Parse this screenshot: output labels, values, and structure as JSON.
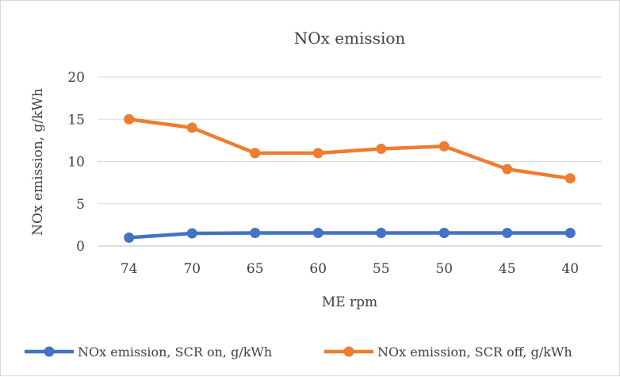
{
  "chart_data": {
    "type": "line",
    "title": "NOx emission",
    "xlabel": "ME rpm",
    "ylabel": "NOx emission, g/kWh",
    "categories": [
      "74",
      "70",
      "65",
      "60",
      "55",
      "50",
      "45",
      "40"
    ],
    "yticks": [
      "0",
      "5",
      "10",
      "15",
      "20"
    ],
    "ylim": [
      0,
      20
    ],
    "grid": true,
    "legend_position": "bottom",
    "series": [
      {
        "name": "NOx emission, SCR on, g/kWh",
        "color": "#4472c4",
        "values": [
          1.0,
          1.5,
          1.55,
          1.55,
          1.55,
          1.55,
          1.55,
          1.55
        ]
      },
      {
        "name": "NOx emission, SCR off, g/kWh",
        "color": "#ed7d31",
        "values": [
          15.0,
          14.0,
          11.0,
          11.0,
          11.5,
          11.8,
          9.1,
          8.0
        ]
      }
    ]
  }
}
